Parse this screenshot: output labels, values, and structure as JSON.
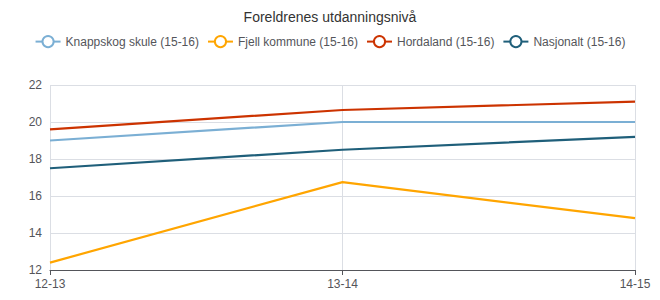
{
  "chart_data": {
    "type": "line",
    "title": "Foreldrenes utdanningsnivå",
    "categories": [
      "12-13",
      "13-14",
      "14-15"
    ],
    "series": [
      {
        "name": "Knappskog skule (15-16)",
        "color": "#7BAFD4",
        "values": [
          19.0,
          20.0,
          20.0
        ]
      },
      {
        "name": "Fjell kommune (15-16)",
        "color": "#FFA500",
        "values": [
          12.4,
          16.75,
          14.8
        ]
      },
      {
        "name": "Hordaland (15-16)",
        "color": "#CC3300",
        "values": [
          19.6,
          20.65,
          21.1
        ]
      },
      {
        "name": "Nasjonalt (15-16)",
        "color": "#1F5F7A",
        "values": [
          17.5,
          18.5,
          19.2
        ]
      }
    ],
    "ylim": [
      12,
      22
    ],
    "yticks": [
      12,
      14,
      16,
      18,
      20,
      22
    ],
    "grid": true,
    "legend": "top"
  }
}
